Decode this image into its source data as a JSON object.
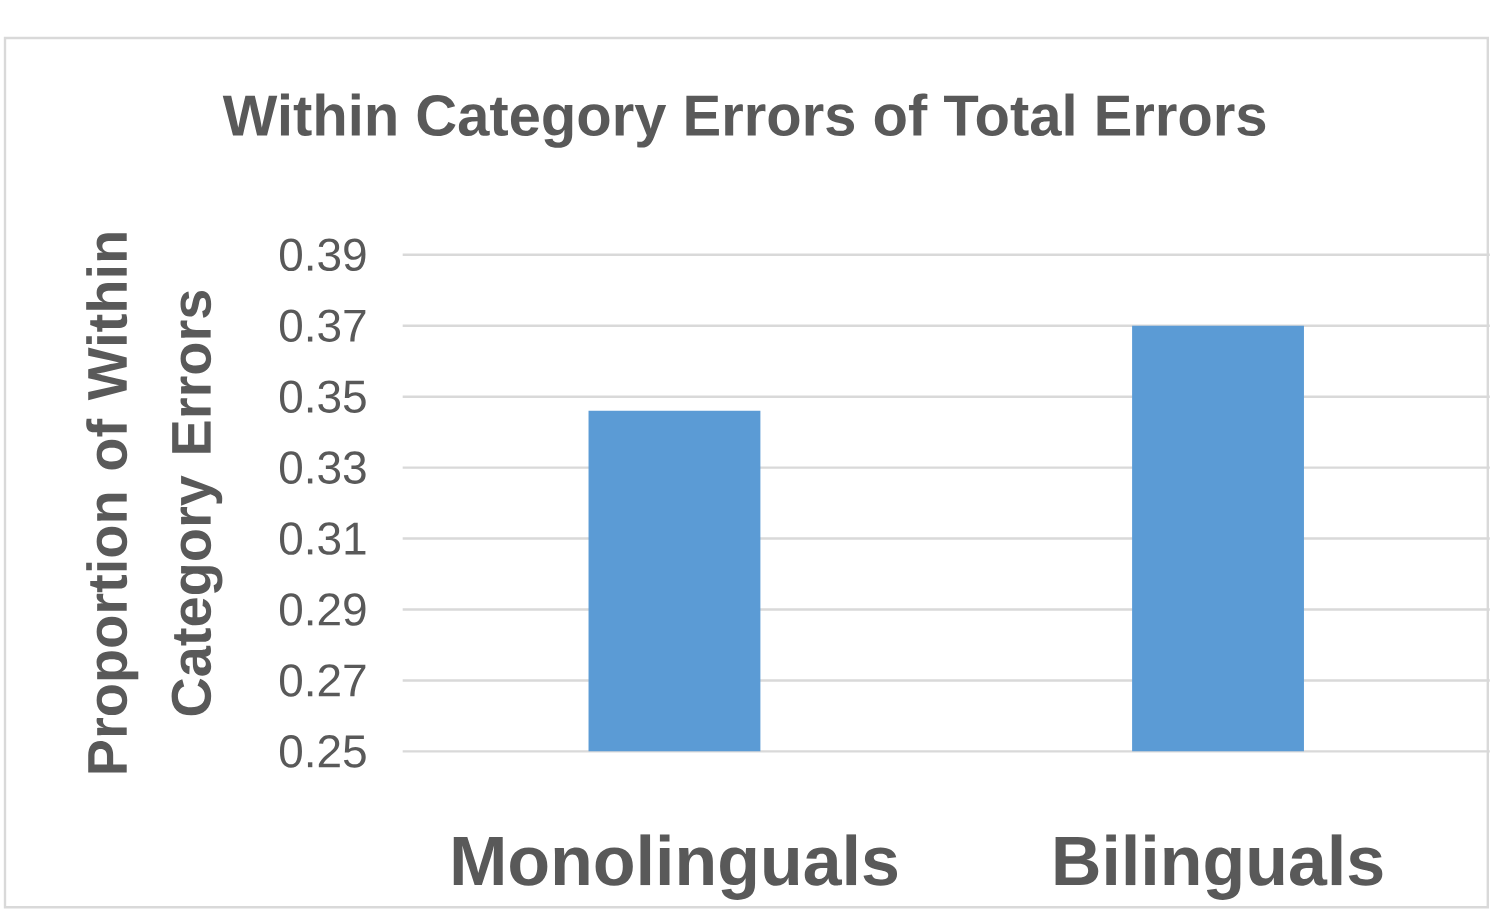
{
  "chart_data": {
    "type": "bar",
    "title": "Within Category Errors of Total Errors",
    "ylabel": "Proportion of Within Category Errors",
    "categories": [
      "Monolinguals",
      "Bilinguals"
    ],
    "values": [
      0.346,
      0.37
    ],
    "color": "#5b9bd5",
    "ylim": [
      0.25,
      0.39
    ],
    "yticks": [
      0.25,
      0.27,
      0.29,
      0.31,
      0.33,
      0.35,
      0.37,
      0.39
    ],
    "grid": "y"
  }
}
